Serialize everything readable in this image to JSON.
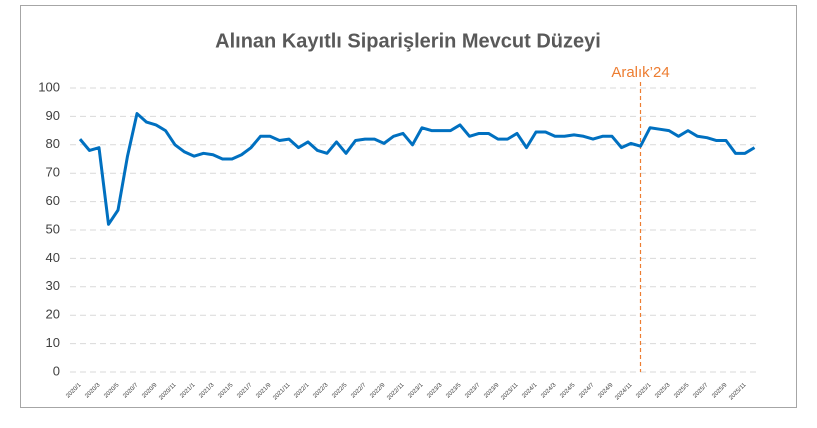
{
  "chart_data": {
    "type": "line",
    "title": "Alınan Kayıtlı Siparişlerin  Mevcut Düzeyi",
    "categories": [
      "2020/1",
      null,
      "2020/3",
      null,
      "2020/5",
      null,
      "2020/7",
      null,
      "2020/9",
      null,
      "2020/11",
      null,
      "2021/1",
      null,
      "2021/3",
      null,
      "2021/5",
      null,
      "2021/7",
      null,
      "2021/9",
      null,
      "2021/11",
      null,
      "2022/1",
      null,
      "2022/3",
      null,
      "2022/5",
      null,
      "2022/7",
      null,
      "2022/9",
      null,
      "2022/11",
      null,
      "2023/1",
      null,
      "2023/3",
      null,
      "2023/5",
      null,
      "2023/7",
      null,
      "2023/9",
      null,
      "2023/11",
      null,
      "2024/1",
      null,
      "2024/3",
      null,
      "2024/5",
      null,
      "2024/7",
      null,
      "2024/9",
      null,
      "2024/11",
      null,
      "2025/1",
      null,
      "2025/3",
      null,
      "2025/5",
      null,
      "2025/7",
      null,
      "2025/9",
      null,
      "2025/11",
      null
    ],
    "series": [
      {
        "name": "Alınan Kayıtlı Siparişlerin Mevcut Düzeyi",
        "color": "#0070c0",
        "values": [
          82,
          78,
          79,
          52,
          57,
          76,
          91,
          88,
          87,
          85,
          80,
          77.5,
          76,
          77,
          76.5,
          75,
          75,
          76.5,
          79,
          83,
          83,
          81.5,
          82,
          79,
          81,
          78,
          77,
          81,
          77,
          81.5,
          82,
          82,
          80.5,
          83,
          84,
          80,
          86,
          85,
          85,
          85,
          87,
          83,
          84,
          84,
          82,
          82,
          84,
          79,
          84.5,
          84.5,
          83,
          83,
          83.5,
          83,
          82,
          83,
          83,
          79,
          80.5,
          79.5,
          86,
          85.5,
          85,
          83,
          85,
          83,
          82.5,
          81.5,
          81.5,
          77,
          77,
          79
        ]
      }
    ],
    "ylim": [
      0,
      100
    ],
    "yticks": [
      0,
      10,
      20,
      30,
      40,
      50,
      60,
      70,
      80,
      90,
      100
    ],
    "grid": true,
    "annotations": [
      {
        "label": "Aralık’24",
        "index": 59,
        "color": "#ed7d31"
      }
    ]
  }
}
